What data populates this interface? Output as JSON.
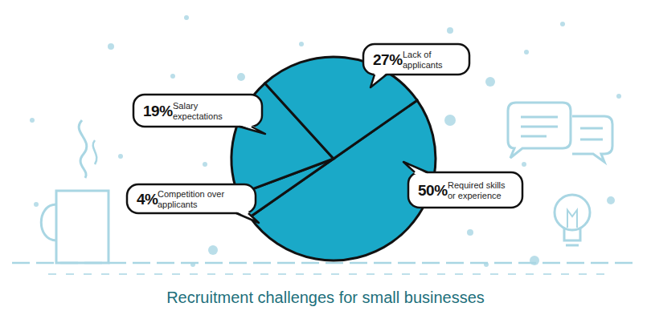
{
  "chart_data": {
    "type": "pie",
    "title": "Recruitment challenges for small businesses",
    "categories": [
      "Required skills or experience",
      "Competition over applicants",
      "Salary expectations",
      "Lack of applicants"
    ],
    "values": [
      50,
      4,
      19,
      27
    ],
    "value_labels": [
      "50%",
      "4%",
      "19%",
      "27%"
    ],
    "color": "#1aa9c8",
    "data_labels": true
  }
}
